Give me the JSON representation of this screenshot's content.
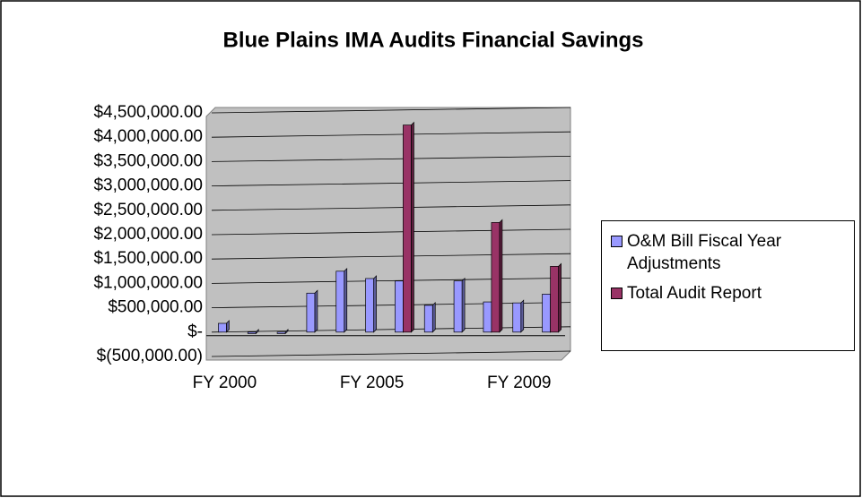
{
  "chart_data": {
    "type": "bar",
    "title": "Blue Plains IMA Audits Financial Savings",
    "categories": [
      "FY 2000",
      null,
      null,
      null,
      null,
      "FY 2005",
      null,
      null,
      null,
      null,
      "FY 2009",
      null
    ],
    "series": [
      {
        "name": "O&M Bill Fiscal Year Adjustments",
        "color": "#9999ff",
        "values": [
          180000,
          -30000,
          -30000,
          800000,
          1250000,
          1100000,
          1050000,
          550000,
          1050000,
          620000,
          600000,
          780000
        ]
      },
      {
        "name": "Total Audit Report",
        "color": "#993366",
        "values": [
          null,
          null,
          null,
          null,
          null,
          null,
          4250000,
          null,
          null,
          2250000,
          null,
          1350000
        ]
      }
    ],
    "ylim": [
      -500000,
      4500000
    ],
    "yticks": [
      {
        "value": -500000,
        "label": "$(500,000.00)"
      },
      {
        "value": 0,
        "label": "$-"
      },
      {
        "value": 500000,
        "label": "$500,000.00"
      },
      {
        "value": 1000000,
        "label": "$1,000,000.00"
      },
      {
        "value": 1500000,
        "label": "$1,500,000.00"
      },
      {
        "value": 2000000,
        "label": "$2,000,000.00"
      },
      {
        "value": 2500000,
        "label": "$2,500,000.00"
      },
      {
        "value": 3000000,
        "label": "$3,000,000.00"
      },
      {
        "value": 3500000,
        "label": "$3,500,000.00"
      },
      {
        "value": 4000000,
        "label": "$4,000,000.00"
      },
      {
        "value": 4500000,
        "label": "$4,500,000.00"
      }
    ],
    "grid": true
  }
}
